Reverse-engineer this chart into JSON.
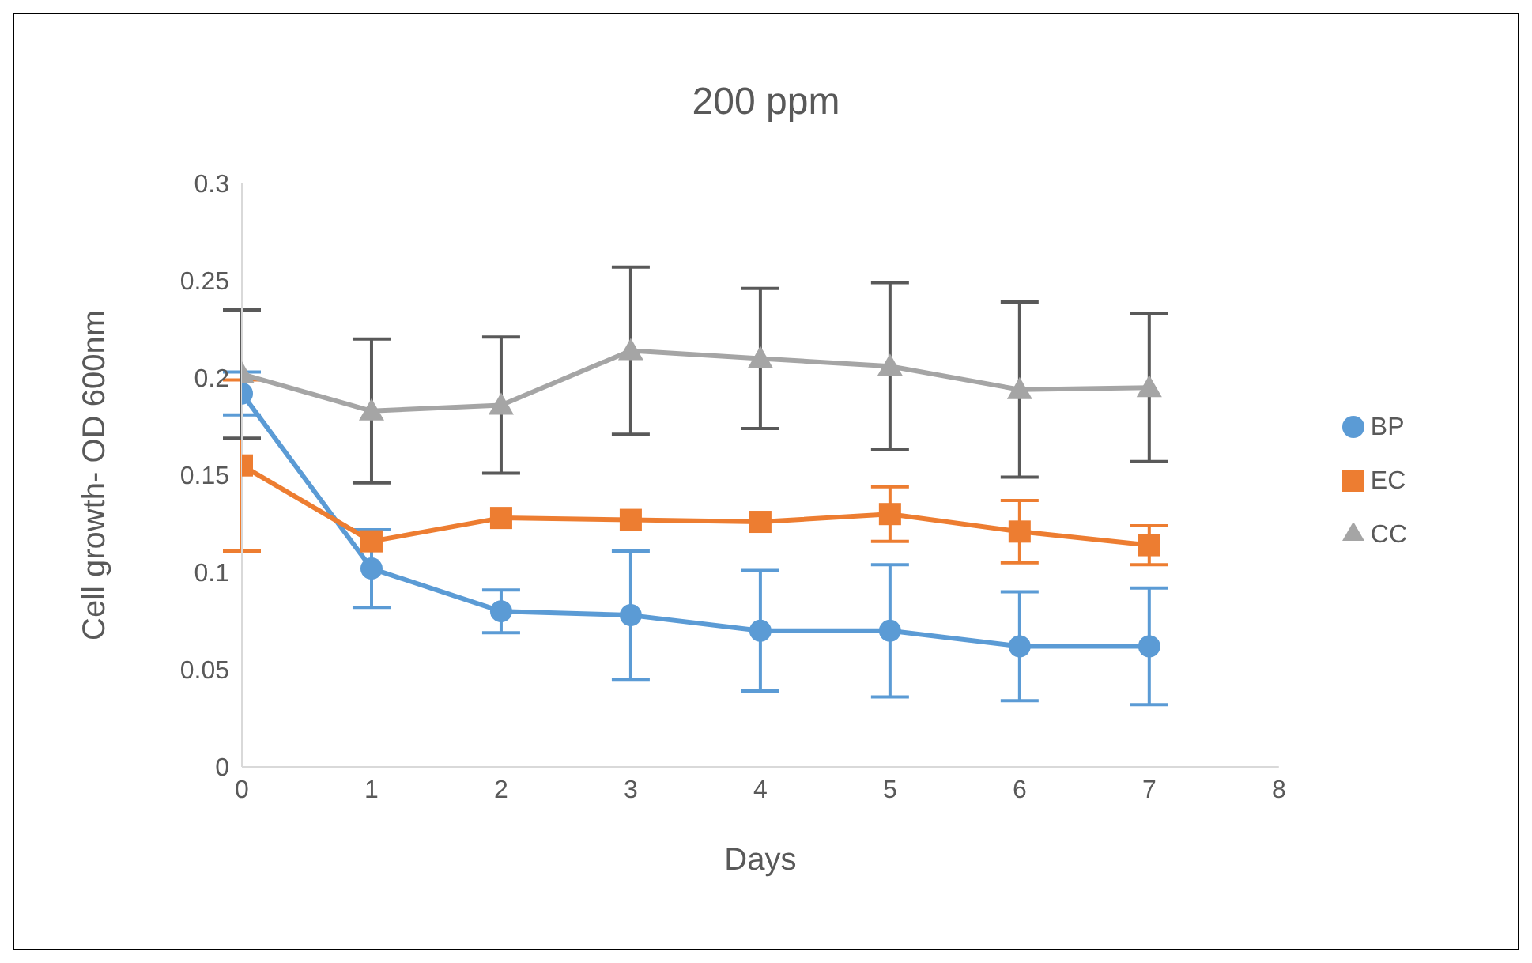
{
  "chart_data": {
    "type": "line",
    "title": "200 ppm",
    "xlabel": "Days",
    "ylabel": "Cell growth- OD 600nm",
    "x": [
      0,
      1,
      2,
      3,
      4,
      5,
      6,
      7
    ],
    "series": [
      {
        "name": "BP",
        "color": "#5b9bd5",
        "marker": "circle",
        "values": [
          0.192,
          0.102,
          0.08,
          0.078,
          0.07,
          0.07,
          0.062,
          0.062
        ],
        "errors": [
          0.011,
          0.02,
          0.011,
          0.033,
          0.031,
          0.034,
          0.028,
          0.03
        ]
      },
      {
        "name": "EC",
        "color": "#ed7d31",
        "marker": "square",
        "values": [
          0.155,
          0.116,
          0.128,
          0.127,
          0.126,
          0.13,
          0.121,
          0.114
        ],
        "errors": [
          0.044,
          null,
          null,
          null,
          null,
          0.014,
          0.016,
          0.01
        ]
      },
      {
        "name": "CC",
        "color": "#a5a5a5",
        "marker": "triangle",
        "values": [
          0.202,
          0.183,
          0.186,
          0.214,
          0.21,
          0.206,
          0.194,
          0.195
        ],
        "errors": [
          0.033,
          0.037,
          0.035,
          0.043,
          0.036,
          0.043,
          0.045,
          0.038
        ]
      }
    ],
    "xlim": [
      0,
      8
    ],
    "xticks": [
      0,
      1,
      2,
      3,
      4,
      5,
      6,
      7,
      8
    ],
    "ylim": [
      0,
      0.3
    ],
    "yticks": [
      0,
      0.05,
      0.1,
      0.15,
      0.2,
      0.25,
      0.3
    ],
    "legend": "right",
    "grid": false
  }
}
